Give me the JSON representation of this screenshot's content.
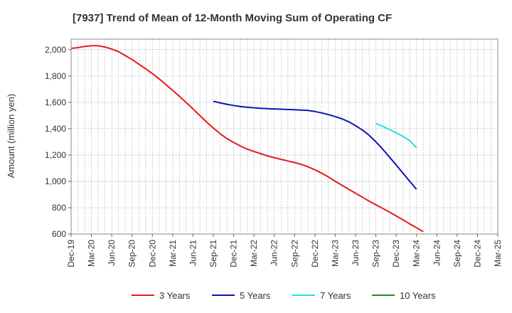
{
  "chart_data": {
    "type": "line",
    "title": "[7937]  Trend of Mean of 12-Month Moving Sum of Operating CF",
    "xlabel": "",
    "ylabel": "Amount (million yen)",
    "ylim": [
      600,
      2080
    ],
    "yticks": [
      600,
      800,
      1000,
      1200,
      1400,
      1600,
      1800,
      2000
    ],
    "ytick_labels": [
      "600",
      "800",
      "1,000",
      "1,200",
      "1,400",
      "1,600",
      "1,800",
      "2,000"
    ],
    "x_start": "Dec-19",
    "x_end": "Mar-25",
    "xtick_labels": [
      "Dec-19",
      "Mar-20",
      "Jun-20",
      "Sep-20",
      "Dec-20",
      "Mar-21",
      "Jun-21",
      "Sep-21",
      "Dec-21",
      "Mar-22",
      "Jun-22",
      "Sep-22",
      "Dec-22",
      "Mar-23",
      "Jun-23",
      "Sep-23",
      "Dec-23",
      "Mar-24",
      "Jun-24",
      "Sep-24",
      "Dec-24",
      "Mar-25"
    ],
    "grid": true,
    "legend_position": "bottom",
    "series": [
      {
        "name": "3 Years",
        "color": "#e41a1c",
        "points": [
          [
            0,
            2010
          ],
          [
            1,
            2015
          ],
          [
            2,
            2025
          ],
          [
            3,
            2030
          ],
          [
            4,
            2030
          ],
          [
            5,
            2020
          ],
          [
            6,
            2005
          ],
          [
            7,
            1985
          ],
          [
            8,
            1955
          ],
          [
            9,
            1925
          ],
          [
            10,
            1890
          ],
          [
            11,
            1855
          ],
          [
            12,
            1818
          ],
          [
            13,
            1778
          ],
          [
            14,
            1735
          ],
          [
            15,
            1690
          ],
          [
            16,
            1645
          ],
          [
            17,
            1598
          ],
          [
            18,
            1550
          ],
          [
            19,
            1500
          ],
          [
            20,
            1450
          ],
          [
            21,
            1405
          ],
          [
            22,
            1362
          ],
          [
            23,
            1325
          ],
          [
            24,
            1295
          ],
          [
            25,
            1268
          ],
          [
            26,
            1245
          ],
          [
            27,
            1227
          ],
          [
            28,
            1210
          ],
          [
            29,
            1193
          ],
          [
            30,
            1180
          ],
          [
            31,
            1167
          ],
          [
            32,
            1155
          ],
          [
            33,
            1143
          ],
          [
            34,
            1128
          ],
          [
            35,
            1110
          ],
          [
            36,
            1088
          ],
          [
            37,
            1062
          ],
          [
            38,
            1033
          ],
          [
            39,
            1000
          ],
          [
            40,
            970
          ],
          [
            41,
            940
          ],
          [
            42,
            910
          ],
          [
            43,
            880
          ],
          [
            44,
            850
          ],
          [
            45,
            822
          ],
          [
            46,
            795
          ],
          [
            47,
            767
          ],
          [
            48,
            738
          ],
          [
            49,
            708
          ],
          [
            50,
            677
          ],
          [
            51,
            648
          ],
          [
            52,
            618
          ]
        ]
      },
      {
        "name": "5 Years",
        "color": "#0a17b5",
        "points": [
          [
            21,
            1608
          ],
          [
            22,
            1596
          ],
          [
            23,
            1585
          ],
          [
            24,
            1576
          ],
          [
            25,
            1568
          ],
          [
            26,
            1563
          ],
          [
            27,
            1559
          ],
          [
            28,
            1555
          ],
          [
            29,
            1552
          ],
          [
            30,
            1550
          ],
          [
            31,
            1548
          ],
          [
            32,
            1546
          ],
          [
            33,
            1544
          ],
          [
            34,
            1541
          ],
          [
            35,
            1538
          ],
          [
            36,
            1530
          ],
          [
            37,
            1520
          ],
          [
            38,
            1507
          ],
          [
            39,
            1492
          ],
          [
            40,
            1475
          ],
          [
            41,
            1452
          ],
          [
            42,
            1423
          ],
          [
            43,
            1390
          ],
          [
            44,
            1350
          ],
          [
            45,
            1300
          ],
          [
            46,
            1245
          ],
          [
            47,
            1185
          ],
          [
            48,
            1125
          ],
          [
            49,
            1062
          ],
          [
            50,
            1000
          ],
          [
            51,
            940
          ]
        ]
      },
      {
        "name": "7 Years",
        "color": "#22dfe6",
        "points": [
          [
            45,
            1440
          ],
          [
            46,
            1417
          ],
          [
            47,
            1394
          ],
          [
            48,
            1368
          ],
          [
            49,
            1341
          ],
          [
            50,
            1310
          ],
          [
            51,
            1255
          ]
        ]
      },
      {
        "name": "10 Years",
        "color": "#238b22",
        "points": []
      }
    ]
  }
}
